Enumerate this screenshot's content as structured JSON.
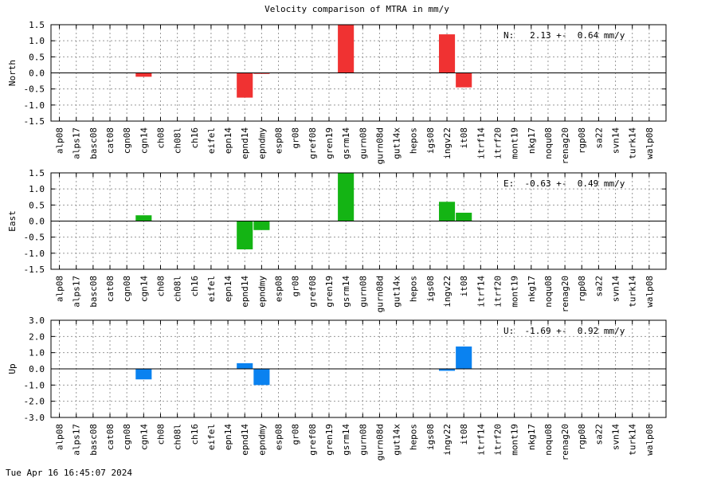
{
  "title": "Velocity comparison of MTRA in mm/y",
  "timestamp": "Tue Apr 16 16:45:07 2024",
  "chart_data": [
    {
      "type": "bar",
      "ylabel": "North",
      "ylim": [
        -1.5,
        1.5
      ],
      "yticks": [
        "1.5",
        "1.0",
        "0.5",
        "0.0",
        "-0.5",
        "-1.0",
        "-1.5"
      ],
      "grid": true,
      "color": "#f03232",
      "annotation": "N:   2.13 +-  0.64 mm/y",
      "categories": [
        "alp08",
        "alps17",
        "basc08",
        "cat08",
        "cgn08",
        "cgn14",
        "ch08",
        "ch08l",
        "ch16",
        "eifel",
        "epn14",
        "epnd14",
        "epndmy",
        "esp08",
        "gr08",
        "gref08",
        "gren19",
        "gsrm14",
        "gurn08",
        "gurn08d",
        "gut14x",
        "hepos",
        "igs08",
        "ingv22",
        "it08",
        "itrf14",
        "itrf20",
        "mont19",
        "nkg17",
        "noqu08",
        "renag20",
        "rgp08",
        "sa22",
        "svn14",
        "turk14",
        "walp08"
      ],
      "values": [
        0,
        0,
        0,
        0,
        0,
        -0.12,
        0,
        0,
        0,
        0,
        0,
        -0.77,
        -0.03,
        0,
        0,
        0,
        0,
        1.5,
        0,
        0,
        0,
        0,
        0,
        1.2,
        -0.45,
        0,
        0,
        0,
        0,
        0,
        0,
        0,
        0,
        0,
        0,
        0
      ]
    },
    {
      "type": "bar",
      "ylabel": "East",
      "ylim": [
        -1.5,
        1.5
      ],
      "yticks": [
        "1.5",
        "1.0",
        "0.5",
        "0.0",
        "-0.5",
        "-1.0",
        "-1.5"
      ],
      "grid": true,
      "color": "#14b414",
      "annotation": "E:  -0.63 +-  0.49 mm/y",
      "categories": [
        "alp08",
        "alps17",
        "basc08",
        "cat08",
        "cgn08",
        "cgn14",
        "ch08",
        "ch08l",
        "ch16",
        "eifel",
        "epn14",
        "epnd14",
        "epndmy",
        "esp08",
        "gr08",
        "gref08",
        "gren19",
        "gsrm14",
        "gurn08",
        "gurn08d",
        "gut14x",
        "hepos",
        "igs08",
        "ingv22",
        "it08",
        "itrf14",
        "itrf20",
        "mont19",
        "nkg17",
        "noqu08",
        "renag20",
        "rgp08",
        "sa22",
        "svn14",
        "turk14",
        "walp08"
      ],
      "values": [
        0,
        0,
        0,
        0,
        0,
        0.18,
        0,
        0,
        0,
        0,
        0,
        -0.88,
        -0.28,
        0,
        0,
        0,
        0,
        1.5,
        0,
        0,
        0,
        0,
        0,
        0.6,
        0.26,
        0,
        0,
        0,
        0,
        0,
        0,
        0,
        0,
        0,
        0,
        0
      ]
    },
    {
      "type": "bar",
      "ylabel": "Up",
      "ylim": [
        -3.0,
        3.0
      ],
      "yticks": [
        "3.0",
        "2.0",
        "1.0",
        "0.0",
        "-1.0",
        "-2.0",
        "-3.0"
      ],
      "grid": true,
      "color": "#0a82f0",
      "annotation": "U:  -1.69 +-  0.92 mm/y",
      "categories": [
        "alp08",
        "alps17",
        "basc08",
        "cat08",
        "cgn08",
        "cgn14",
        "ch08",
        "ch08l",
        "ch16",
        "eifel",
        "epn14",
        "epnd14",
        "epndmy",
        "esp08",
        "gr08",
        "gref08",
        "gren19",
        "gsrm14",
        "gurn08",
        "gurn08d",
        "gut14x",
        "hepos",
        "igs08",
        "ingv22",
        "it08",
        "itrf14",
        "itrf20",
        "mont19",
        "nkg17",
        "noqu08",
        "renag20",
        "rgp08",
        "sa22",
        "svn14",
        "turk14",
        "walp08"
      ],
      "values": [
        0,
        0,
        0,
        0,
        0,
        -0.65,
        0,
        0,
        0,
        0,
        0,
        0.35,
        -1.0,
        0,
        0,
        0,
        0,
        0,
        0,
        0,
        0,
        0,
        0,
        -0.12,
        1.38,
        0,
        0,
        0,
        0,
        0,
        0,
        0,
        0,
        0,
        0,
        0
      ]
    }
  ]
}
